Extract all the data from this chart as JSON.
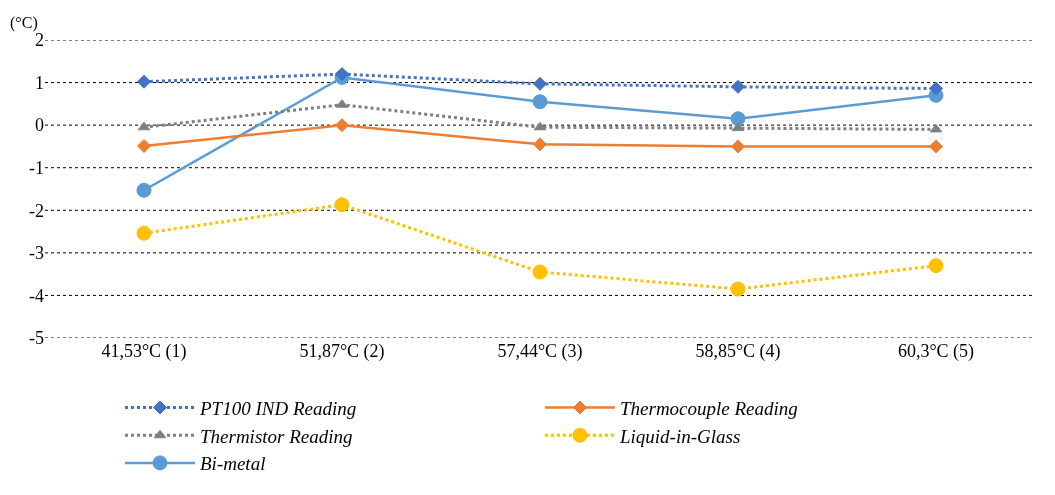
{
  "chart_data": {
    "type": "line",
    "ylabel": "(°C)",
    "categories": [
      "41,53°C (1)",
      "51,87°C (2)",
      "57,44°C (3)",
      "58,85°C (4)",
      "60,3°C (5)"
    ],
    "series": [
      {
        "name": "PT100 IND Reading",
        "color": "#4472c4",
        "marker": "diamond",
        "line_style": "dotted",
        "values": [
          1.02,
          1.2,
          0.97,
          0.9,
          0.86
        ]
      },
      {
        "name": "Thermocouple Reading",
        "color": "#ed7d31",
        "marker": "diamond",
        "line_style": "solid",
        "values": [
          -0.49,
          0,
          -0.45,
          -0.5,
          -0.5
        ]
      },
      {
        "name": "Thermistor Reading",
        "color": "#7f7f7f",
        "marker": "triangle",
        "line_style": "dotted",
        "values": [
          -0.05,
          0.48,
          -0.05,
          -0.07,
          -0.1
        ]
      },
      {
        "name": "Liquid-in-Glass",
        "color": "#ffc000",
        "marker": "circle",
        "line_style": "dotted",
        "values": [
          -2.54,
          -1.87,
          -3.45,
          -3.85,
          -3.3
        ]
      },
      {
        "name": "Bi-metal",
        "color": "#5b9bd5",
        "marker": "circle",
        "line_style": "solid",
        "values": [
          -1.53,
          1.12,
          0.55,
          0.15,
          0.7
        ]
      }
    ],
    "ylim": [
      -5,
      2
    ],
    "yticks": [
      -5,
      -4,
      -3,
      -2,
      -1,
      0,
      1,
      2
    ],
    "grid": "y",
    "legend": "bottom"
  }
}
